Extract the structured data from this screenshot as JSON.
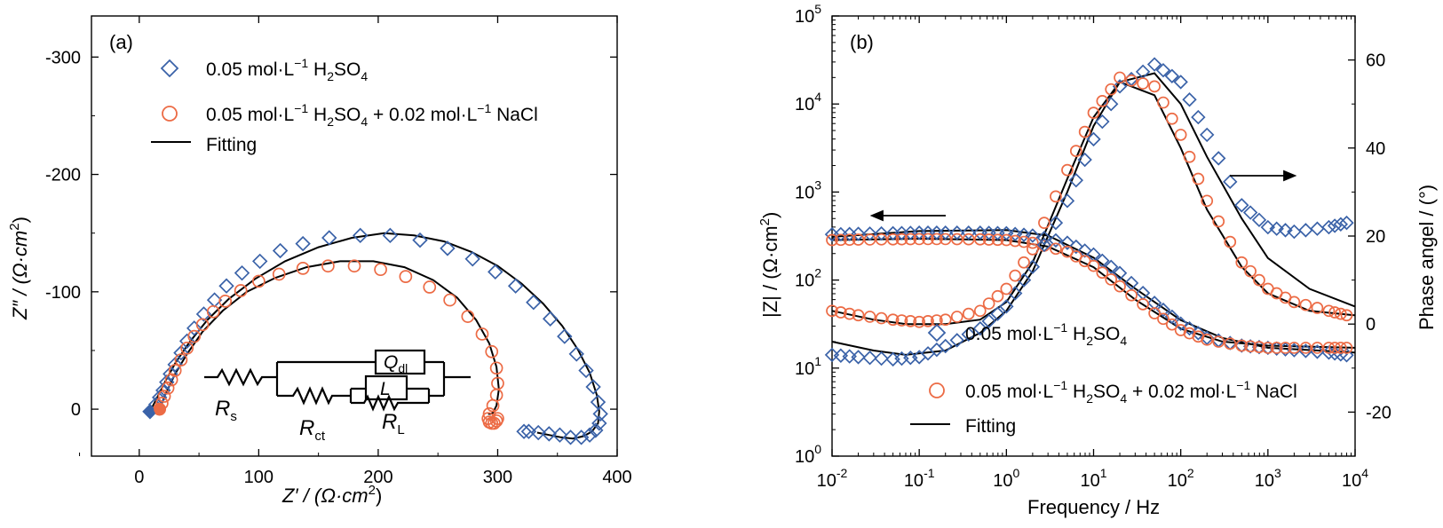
{
  "colors": {
    "series1": "#3a62a8",
    "series2": "#ec6b45",
    "fit": "#000000"
  },
  "panel_a": {
    "label": "(a)"
  },
  "panel_b": {
    "label": "(b)"
  },
  "legend_a": [
    {
      "pre": "0.05 mol·L",
      "sup": "−1",
      "mid": " H",
      "sub1": "2",
      "mid2": "SO",
      "sub2": "4",
      "tail": ""
    },
    {
      "pre": "0.05 mol·L",
      "sup": "−1",
      "mid": " H",
      "sub1": "2",
      "mid2": "SO",
      "sub2": "4",
      "tail": " + 0.02 mol·L",
      "sup2": "−1",
      "tail2": " NaCl"
    },
    {
      "pre": "Fitting"
    }
  ],
  "circuit": {
    "rs": "R",
    "rs_sub": "s",
    "rct": "R",
    "rct_sub": "ct",
    "rl": "R",
    "rl_sub": "L",
    "q": "Q",
    "q_sub": "dl",
    "l": "L"
  },
  "axes_a": {
    "xlabel_main": "Z′ / (Ω·cm",
    "xlabel_sup": "2",
    "xlabel_end": ")",
    "ylabel_main": "Z″ / (Ω·cm",
    "ylabel_sup": "2",
    "ylabel_end": ")"
  },
  "axes_b": {
    "xlabel": "Frequency / Hz",
    "ylabel_main": "|Z| / (Ω·cm",
    "ylabel_sup": "2",
    "ylabel_end": ")",
    "y2label": "Phase angel / (°)"
  },
  "chart_data": [
    {
      "type": "scatter",
      "panel": "(a)",
      "xlabel": "Z′ / (Ω·cm2)",
      "ylabel": "Z″ / (Ω·cm2)",
      "xlim": [
        -40,
        400
      ],
      "ylim": [
        40,
        -335
      ],
      "xticks": [
        0,
        100,
        200,
        300,
        400
      ],
      "yticks": [
        0,
        -100,
        -200,
        -300
      ],
      "series": [
        {
          "name": "0.05 mol·L−1 H2SO4",
          "marker": "diamond",
          "x": [
            9,
            14,
            17,
            20,
            23,
            26,
            30,
            35,
            40,
            46,
            54,
            63,
            73,
            86,
            101,
            118,
            137,
            159,
            185,
            210,
            235,
            258,
            279,
            298,
            315,
            330,
            344,
            356,
            366,
            374,
            380,
            384,
            386,
            385,
            382,
            377,
            370,
            361,
            352,
            343,
            334,
            326,
            322
          ],
          "y": [
            2,
            -4,
            -10,
            -16,
            -23,
            -30,
            -38,
            -48,
            -58,
            -69,
            -81,
            -93,
            -105,
            -116,
            -126,
            -135,
            -141,
            -146,
            -148,
            -148,
            -144,
            -137,
            -128,
            -117,
            -105,
            -91,
            -77,
            -62,
            -47,
            -33,
            -19,
            -6,
            4,
            12,
            18,
            22,
            24,
            24,
            22,
            21,
            20,
            19,
            19
          ]
        },
        {
          "name": "0.05 mol·L−1 H2SO4 + 0.02 mol·L−1 NaCl",
          "marker": "circle",
          "x": [
            17,
            19,
            21,
            24,
            27,
            30,
            35,
            40,
            46,
            53,
            62,
            72,
            85,
            100,
            117,
            137,
            158,
            180,
            202,
            223,
            243,
            260,
            275,
            287,
            295,
            299,
            300,
            299,
            296,
            293,
            292,
            293,
            295,
            297,
            299,
            300
          ],
          "y": [
            0,
            -5,
            -11,
            -18,
            -25,
            -33,
            -42,
            -52,
            -62,
            -72,
            -83,
            -92,
            -101,
            -109,
            -115,
            -120,
            -122,
            -122,
            -119,
            -113,
            -104,
            -93,
            -79,
            -64,
            -49,
            -35,
            -22,
            -12,
            -3,
            4,
            8,
            11,
            12,
            12,
            10,
            8
          ]
        }
      ],
      "fits": [
        {
          "name": "Fitting",
          "x": [
            9,
            15,
            22,
            30,
            42,
            57,
            75,
            97,
            122,
            150,
            178,
            205,
            230,
            255,
            278,
            300,
            320,
            338,
            354,
            367,
            377,
            383,
            385,
            384,
            379,
            372,
            363,
            353,
            343,
            333
          ],
          "y": [
            2,
            -10,
            -24,
            -39,
            -57,
            -76,
            -94,
            -111,
            -126,
            -138,
            -146,
            -150,
            -148,
            -143,
            -134,
            -122,
            -107,
            -90,
            -71,
            -51,
            -31,
            -12,
            2,
            12,
            19,
            23,
            25,
            24,
            22,
            20
          ]
        },
        {
          "name": "Fitting",
          "x": [
            17,
            22,
            30,
            40,
            53,
            70,
            90,
            114,
            140,
            168,
            196,
            222,
            246,
            266,
            282,
            293,
            299,
            301,
            299,
            296,
            294,
            292
          ],
          "y": [
            0,
            -13,
            -30,
            -47,
            -66,
            -84,
            -100,
            -112,
            -121,
            -126,
            -126,
            -121,
            -110,
            -95,
            -76,
            -56,
            -36,
            -17,
            -3,
            3,
            4,
            4
          ]
        }
      ]
    },
    {
      "type": "line",
      "panel": "(b)",
      "xlabel": "Frequency / Hz",
      "ylabel": "|Z| / (Ω·cm2)",
      "y2label": "Phase angel / (°)",
      "xscale": "log",
      "yscale": "log",
      "xlim": [
        0.01,
        10000
      ],
      "ylim": [
        1,
        100000
      ],
      "y2lim": [
        -30,
        70
      ],
      "xticks": [
        0.01,
        0.1,
        1,
        10,
        100,
        1000,
        10000
      ],
      "yticks": [
        1,
        10,
        100,
        1000,
        10000,
        100000
      ],
      "y2ticks": [
        -20,
        0,
        20,
        40,
        60
      ],
      "series": [
        {
          "name": "0.05 mol·L−1 H2SO4",
          "quantity": "|Z|",
          "marker": "diamond",
          "x": [
            0.01,
            0.02,
            0.05,
            0.1,
            0.2,
            0.5,
            1,
            2,
            5,
            10,
            20,
            50,
            100,
            200,
            500,
            1000,
            2000,
            5000,
            8000
          ],
          "y": [
            330,
            335,
            340,
            345,
            345,
            345,
            340,
            320,
            265,
            195,
            120,
            55,
            32,
            22,
            18,
            17,
            16,
            15,
            14
          ]
        },
        {
          "name": "0.05 mol·L−1 H2SO4 + 0.02 mol·L−1 NaCl",
          "quantity": "|Z|",
          "marker": "circle",
          "x": [
            0.01,
            0.02,
            0.05,
            0.1,
            0.2,
            0.5,
            1,
            2,
            5,
            10,
            20,
            50,
            100,
            200,
            500,
            1000,
            2000,
            5000,
            8000
          ],
          "y": [
            285,
            288,
            290,
            292,
            292,
            290,
            285,
            265,
            210,
            145,
            85,
            42,
            27,
            21,
            18,
            17,
            17,
            17,
            17
          ]
        },
        {
          "name": "0.05 mol·L−1 H2SO4",
          "quantity": "phase",
          "marker": "diamond",
          "x": [
            0.01,
            0.02,
            0.05,
            0.1,
            0.2,
            0.5,
            1,
            2,
            5,
            10,
            20,
            50,
            100,
            200,
            500,
            1000,
            2000,
            5000,
            8000
          ],
          "y": [
            -7,
            -7.5,
            -8,
            -7.5,
            -5,
            -1,
            4,
            13,
            28,
            42,
            54,
            59,
            55,
            43,
            27,
            22,
            21,
            22,
            23
          ]
        },
        {
          "name": "0.05 mol·L−1 H2SO4 + 0.02 mol·L−1 NaCl",
          "quantity": "phase",
          "marker": "circle",
          "x": [
            0.01,
            0.02,
            0.05,
            0.1,
            0.2,
            0.5,
            1,
            2,
            5,
            10,
            20,
            50,
            100,
            200,
            500,
            1000,
            2000,
            5000,
            8000
          ],
          "y": [
            3,
            2,
            1,
            0.5,
            1,
            3,
            8,
            17,
            35,
            48,
            56,
            54,
            43,
            28,
            14,
            8,
            5,
            3,
            2
          ]
        }
      ],
      "fits": [
        {
          "name": "Fitting",
          "quantity": "|Z|",
          "x": [
            0.01,
            0.1,
            1,
            3,
            10,
            30,
            100,
            300,
            1000,
            10000
          ],
          "y": [
            310,
            360,
            370,
            320,
            180,
            80,
            35,
            22,
            17,
            15
          ]
        },
        {
          "name": "Fitting",
          "quantity": "|Z|",
          "x": [
            0.01,
            0.1,
            1,
            3,
            10,
            30,
            100,
            300,
            1000,
            10000
          ],
          "y": [
            285,
            295,
            285,
            240,
            140,
            60,
            28,
            20,
            18,
            17
          ]
        },
        {
          "name": "Fitting",
          "quantity": "phase",
          "x": [
            0.01,
            0.03,
            0.07,
            0.2,
            0.5,
            1,
            2,
            5,
            10,
            20,
            50,
            100,
            200,
            500,
            1000,
            3000,
            10000
          ],
          "y": [
            -4,
            -6,
            -7,
            -6,
            -2,
            3,
            12,
            30,
            45,
            55,
            57,
            50,
            38,
            24,
            15,
            8,
            4
          ]
        },
        {
          "name": "Fitting",
          "quantity": "phase",
          "x": [
            0.01,
            0.03,
            0.07,
            0.2,
            0.5,
            1,
            2,
            5,
            10,
            20,
            50,
            100,
            200,
            500,
            1000,
            3000,
            10000
          ],
          "y": [
            3,
            1,
            0,
            0,
            1,
            5,
            14,
            33,
            47,
            55,
            52,
            40,
            26,
            13,
            7,
            3,
            2
          ]
        }
      ]
    }
  ]
}
